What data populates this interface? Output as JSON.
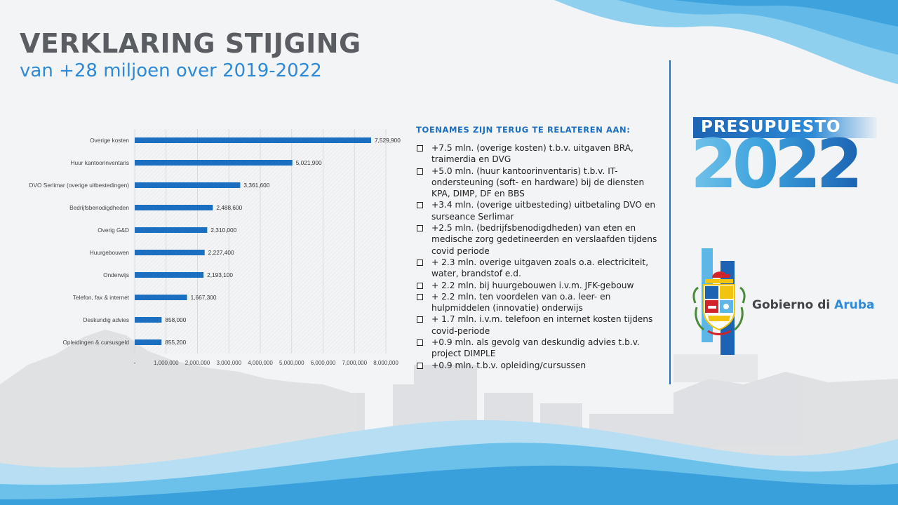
{
  "header": {
    "title": "VERKLARING STIJGING",
    "subtitle": "van +28 miljoen over 2019-2022"
  },
  "chart_data": {
    "type": "bar",
    "orientation": "horizontal",
    "categories": [
      "Overige kosten",
      "Huur kantoorinventaris",
      "DVO Serlimar (overige uitbestedingen)",
      "Bedrijfsbenodigdheden",
      "Overig G&D",
      "Huurgebouwen",
      "Onderwijs",
      "Telefon, fax & internet",
      "Deskundig advies",
      "Opleidingen & cursusgeld"
    ],
    "values": [
      7529900,
      5021900,
      3361600,
      2488600,
      2310000,
      2227400,
      2193100,
      1667300,
      858000,
      855200
    ],
    "value_labels": [
      "7,529,900",
      "5,021,900",
      "3,361,600",
      "2,488,600",
      "2,310,000",
      "2,227,400",
      "2,193,100",
      "1,667,300",
      "858,000",
      "855,200"
    ],
    "xticks": [
      "-",
      "1,000,000",
      "2,000,000",
      "3,000,000",
      "4,000,000",
      "5,000,000",
      "6,000,000",
      "7,000,000",
      "8,000,000"
    ],
    "xlim": [
      0,
      8000000
    ],
    "grid": true,
    "title": "",
    "xlabel": "",
    "ylabel": "",
    "bar_color": "#1b6fc1"
  },
  "bullets": {
    "heading": "TOENAMES ZIJN TERUG TE RELATEREN AAN:",
    "items": [
      "+7.5 mln. (overige kosten) t.b.v. uitgaven BRA, traimerdia en DVG",
      "+5.0 mln. (huur kantoorinventaris) t.b.v. IT-ondersteuning (soft- en hardware) bij de diensten KPA, DIMP, DF en BBS",
      "+3.4 mln. (overige uitbesteding) uitbetaling DVO en surseance Serlimar",
      "+2.5 mln. (bedrijfsbenodigdheden)   van eten en medische zorg gedetineerden en verslaafden tijdens covid periode",
      "+ 2.3 mln. overige uitgaven zoals o.a. electriciteit, water, brandstof e.d.",
      "+ 2.2 mln. bij huurgebouwen i.v.m. JFK-gebouw",
      "+ 2.2 mln. ten voordelen van o.a. leer- en hulpmiddelen (innovatie) onderwijs",
      "+ 1.7 mln. i.v.m. telefoon en internet kosten tijdens covid-periode",
      "+0.9 mln. als gevolg van deskundig advies t.b.v. project DIMPLE",
      "+0.9 mln. t.b.v. opleiding/cursussen"
    ]
  },
  "branding": {
    "presupuesto": "PRESUPUESTO",
    "year": "2022",
    "gov_name_prefix": "Gobierno di ",
    "gov_name_accent": "Aruba"
  },
  "colors": {
    "accent_blue": "#1b6fc1",
    "title_gray": "#5a5d61",
    "subtitle_blue": "#2e8ad6",
    "wave_light": "#8fd0ef",
    "wave_mid": "#3aa0dc"
  },
  "icons": [
    "checkbox-bullet-icon",
    "aruba-coat-of-arms-icon"
  ]
}
